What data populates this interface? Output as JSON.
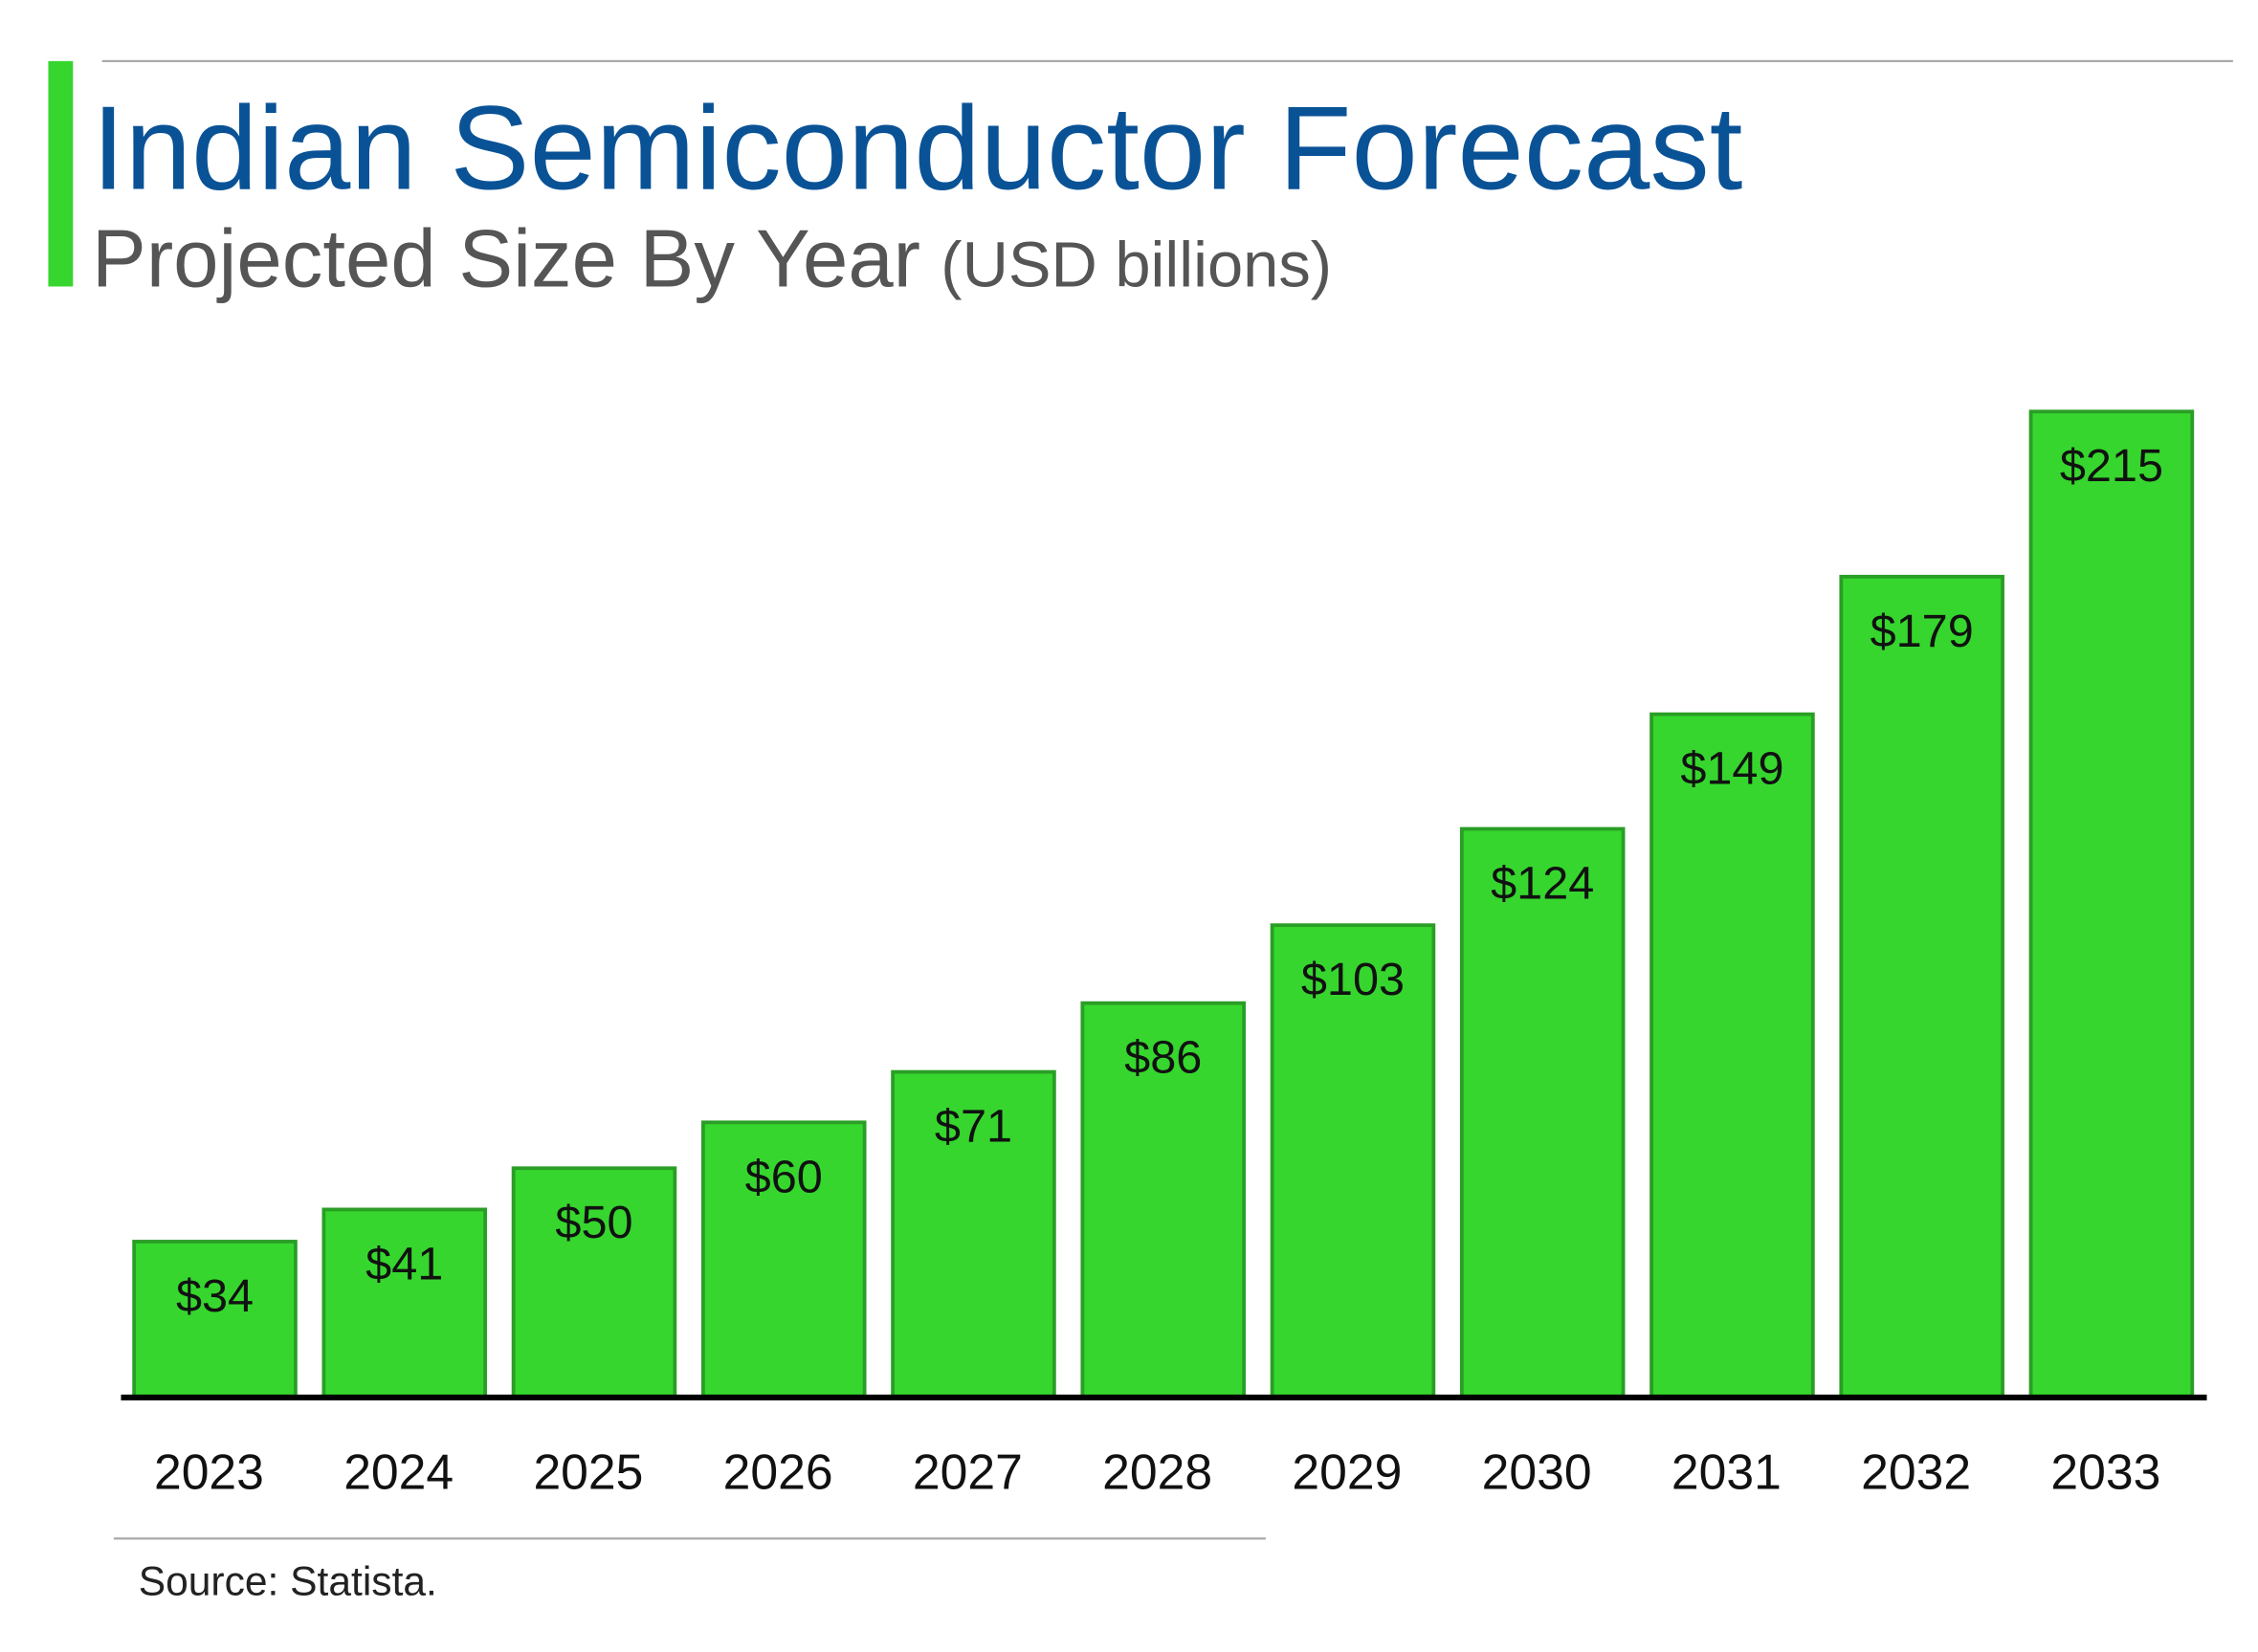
{
  "chart_data": {
    "type": "bar",
    "title": "Indian Semiconductor Forecast",
    "subtitle": "Projected Size By Year",
    "unit": "(USD billions)",
    "categories": [
      "2023",
      "2024",
      "2025",
      "2026",
      "2027",
      "2028",
      "2029",
      "2030",
      "2031",
      "2032",
      "2033"
    ],
    "values": [
      34,
      41,
      50,
      60,
      71,
      86,
      103,
      124,
      149,
      179,
      215
    ],
    "value_labels": [
      "$34",
      "$41",
      "$50",
      "$60",
      "$71",
      "$86",
      "$103",
      "$124",
      "$149",
      "$179",
      "$215"
    ],
    "color": "#36d62e",
    "source": "Source: Statista."
  }
}
